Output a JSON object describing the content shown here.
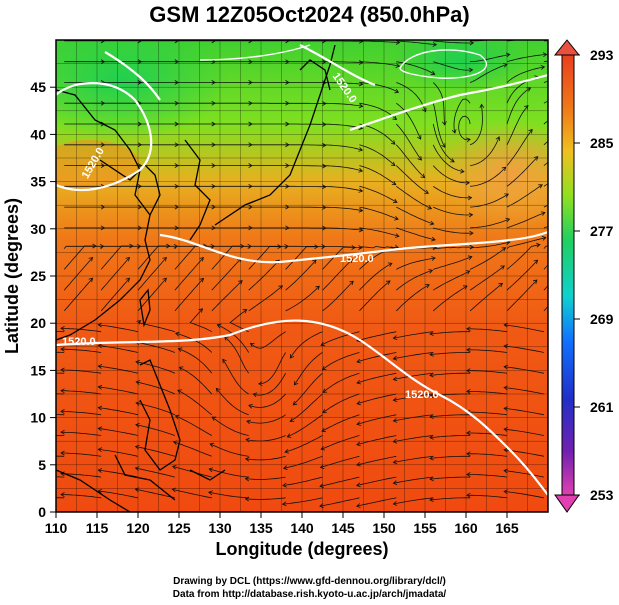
{
  "title": "GSM 12Z05Oct2024 (850.0hPa)",
  "axes": {
    "xlabel": "Longitude (degrees)",
    "ylabel": "Latitude (degrees)",
    "x_ticks": [
      "110",
      "115",
      "120",
      "125",
      "130",
      "135",
      "140",
      "145",
      "150",
      "155",
      "160",
      "165"
    ],
    "y_ticks": [
      "0",
      "5",
      "10",
      "15",
      "20",
      "25",
      "30",
      "35",
      "40",
      "45"
    ],
    "x_range": [
      110,
      170
    ],
    "y_range": [
      0,
      50
    ]
  },
  "colorbar": {
    "labels": [
      "293",
      "285",
      "277",
      "269",
      "261",
      "253"
    ],
    "unit_range": [
      253,
      293
    ],
    "colors": [
      "#e040a0",
      "#3020c0",
      "#1070ff",
      "#10d0e0",
      "#20e060",
      "#90e020",
      "#f0c020",
      "#f07010",
      "#e83010"
    ]
  },
  "contours": {
    "labels": [
      "1520.0",
      "1520.0",
      "1520.0",
      "1520.0",
      "1520.0"
    ]
  },
  "credit": {
    "line1": "Drawing by DCL (https://www.gfd-dennou.org/library/dcl/)",
    "line2": "Data from http://database.rish.kyoto-u.ac.jp/arch/jmadata/"
  }
}
